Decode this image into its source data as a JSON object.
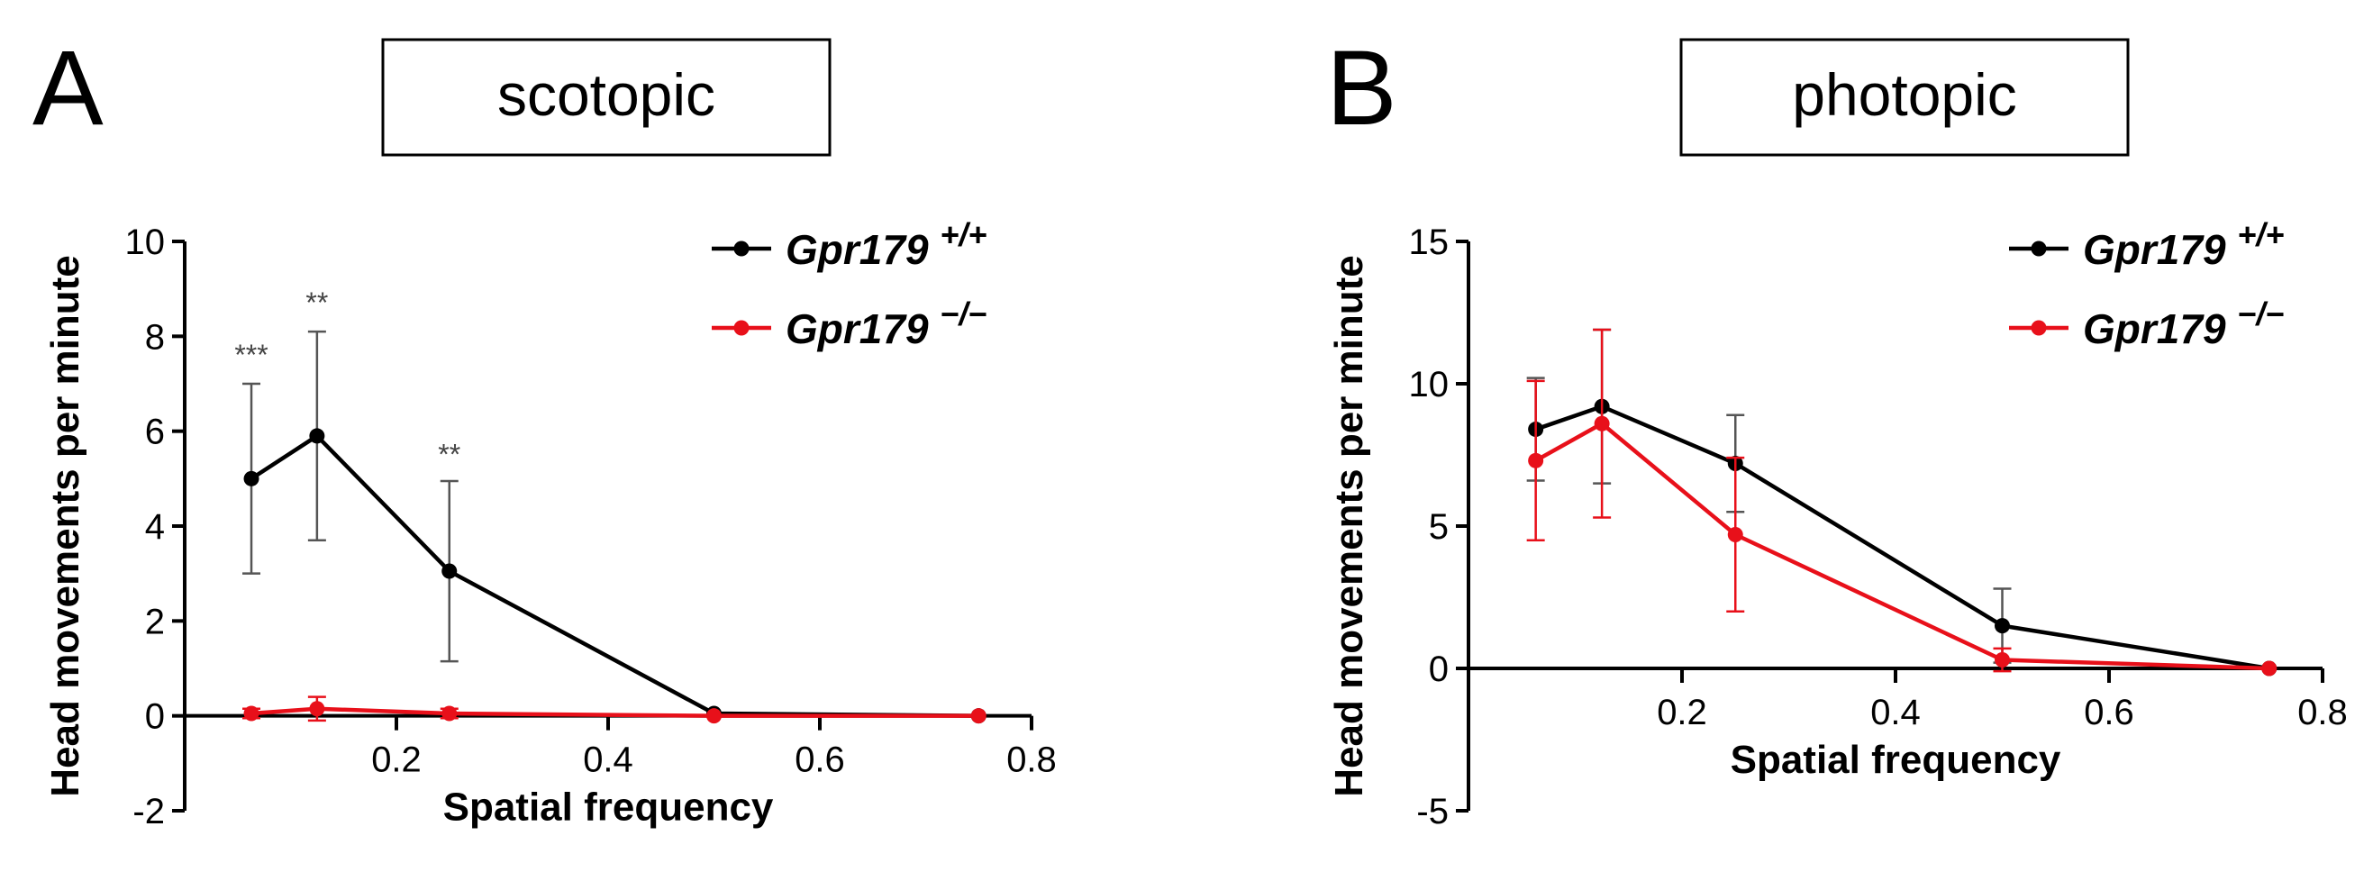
{
  "panels": [
    {
      "letter": "A",
      "condition": "scotopic"
    },
    {
      "letter": "B",
      "condition": "photopic"
    }
  ],
  "colors": {
    "wildtype": "#000000",
    "knockout": "#e8101a",
    "errorbar_wt": "#555555",
    "errorbar_ko": "#e8101a",
    "axis": "#000000"
  },
  "chart_data": [
    {
      "type": "line",
      "title": "scotopic",
      "xlabel": "Spatial frequency",
      "ylabel": "Head movements per minute",
      "xlim": [
        0,
        0.8
      ],
      "ylim": [
        -2,
        10
      ],
      "xticks": [
        "0.2",
        "0.4",
        "0.6",
        "0.8"
      ],
      "yticks": [
        "-2",
        "0",
        "2",
        "4",
        "6",
        "8",
        "10"
      ],
      "legend_position": "top-right",
      "series": [
        {
          "name": "Gpr179",
          "superscript": "+/+",
          "color": "#000000",
          "x": [
            0.063,
            0.125,
            0.25,
            0.5,
            0.75
          ],
          "y": [
            5.0,
            5.9,
            3.05,
            0.05,
            0.0
          ],
          "err_upper": [
            2.0,
            2.2,
            1.9,
            0.0,
            0.0
          ],
          "err_lower": [
            2.0,
            2.2,
            1.9,
            0.0,
            0.0
          ]
        },
        {
          "name": "Gpr179",
          "superscript": "−/−",
          "color": "#e8101a",
          "x": [
            0.063,
            0.125,
            0.25,
            0.5,
            0.75
          ],
          "y": [
            0.05,
            0.15,
            0.05,
            0.0,
            0.0
          ],
          "err_upper": [
            0.1,
            0.25,
            0.1,
            0.0,
            0.0
          ],
          "err_lower": [
            0.1,
            0.25,
            0.1,
            0.0,
            0.0
          ]
        }
      ],
      "annotations": [
        {
          "text": "***",
          "x": 0.063,
          "y": 7.4
        },
        {
          "text": "**",
          "x": 0.125,
          "y": 8.5
        },
        {
          "text": "**",
          "x": 0.25,
          "y": 5.3
        }
      ]
    },
    {
      "type": "line",
      "title": "photopic",
      "xlabel": "Spatial frequency",
      "ylabel": "Head movements per minute",
      "xlim": [
        0,
        0.8
      ],
      "ylim": [
        -5,
        15
      ],
      "xticks": [
        "0.2",
        "0.4",
        "0.6",
        "0.8"
      ],
      "yticks": [
        "-5",
        "0",
        "5",
        "10",
        "15"
      ],
      "legend_position": "top-right",
      "series": [
        {
          "name": "Gpr179",
          "superscript": "+/+",
          "color": "#000000",
          "x": [
            0.063,
            0.125,
            0.25,
            0.5,
            0.75
          ],
          "y": [
            8.4,
            9.2,
            7.2,
            1.5,
            0.0
          ],
          "err_upper": [
            1.8,
            2.7,
            1.7,
            1.3,
            0.0
          ],
          "err_lower": [
            1.8,
            2.7,
            1.7,
            1.3,
            0.0
          ]
        },
        {
          "name": "Gpr179",
          "superscript": "−/−",
          "color": "#e8101a",
          "x": [
            0.063,
            0.125,
            0.25,
            0.5,
            0.75
          ],
          "y": [
            7.3,
            8.6,
            4.7,
            0.3,
            0.0
          ],
          "err_upper": [
            2.8,
            3.3,
            2.7,
            0.4,
            0.0
          ],
          "err_lower": [
            2.8,
            3.3,
            2.7,
            0.4,
            0.0
          ]
        }
      ],
      "annotations": []
    }
  ]
}
